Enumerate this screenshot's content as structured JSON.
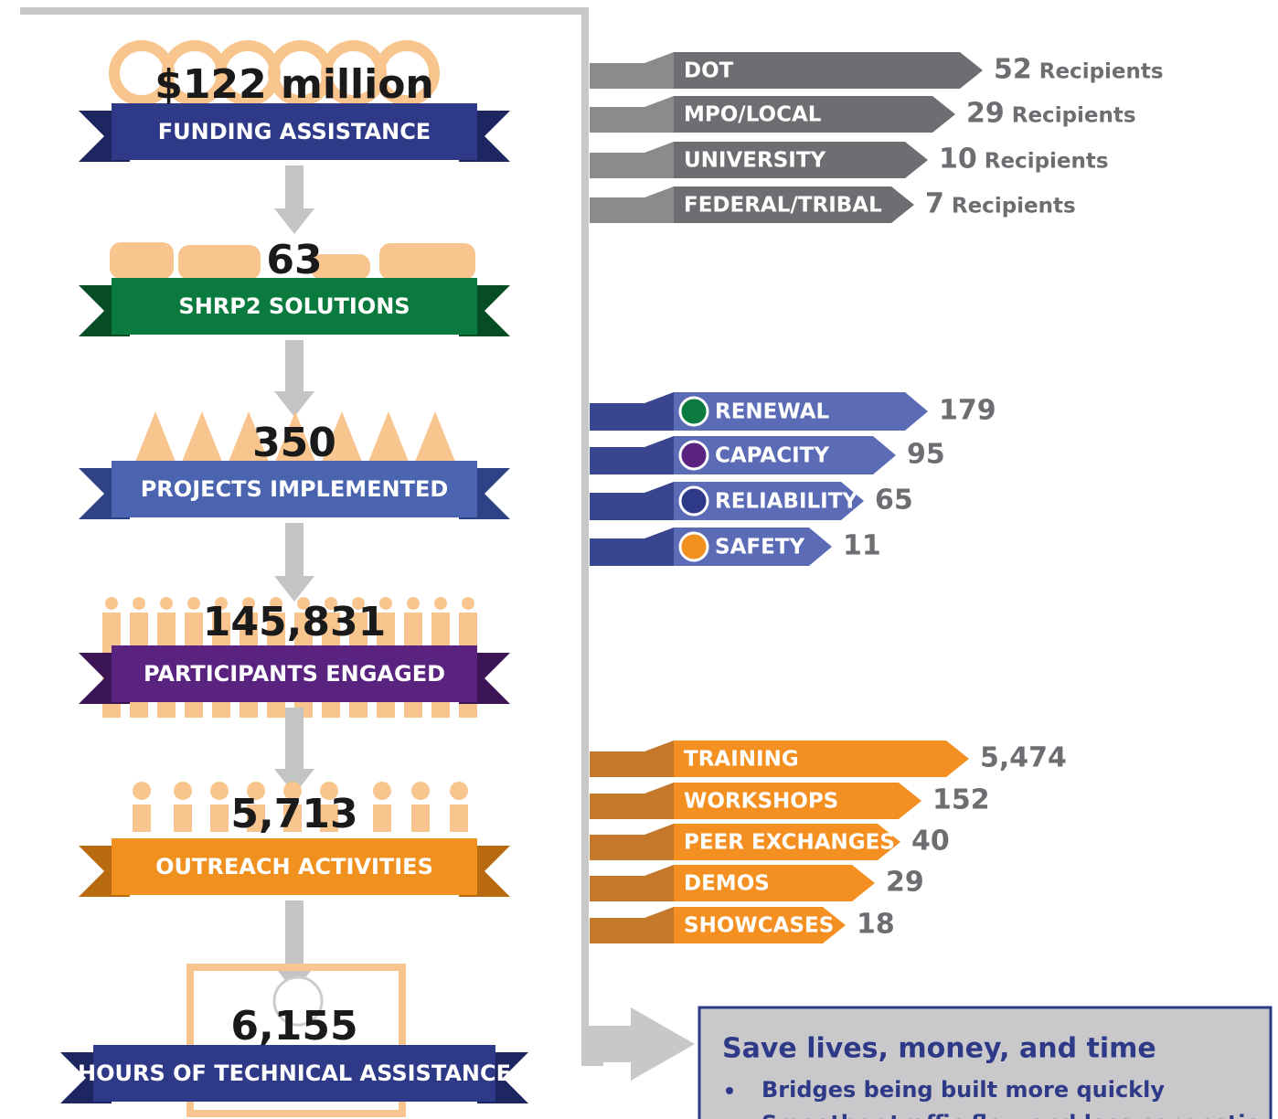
{
  "steps": [
    {
      "value": "$122 million",
      "label": "FUNDING ASSISTANCE"
    },
    {
      "value": "63",
      "label": "SHRP2 SOLUTIONS"
    },
    {
      "value": "350",
      "label": "PROJECTS IMPLEMENTED"
    },
    {
      "value": "145,831",
      "label": "PARTICIPANTS ENGAGED"
    },
    {
      "value": "5,713",
      "label": "OUTREACH ACTIVITIES"
    },
    {
      "value": "6,155",
      "label": "HOURS OF TECHNICAL ASSISTANCE"
    }
  ],
  "recipients": [
    {
      "label": "DOT",
      "value": "52",
      "unit": "Recipients"
    },
    {
      "label": "MPO/LOCAL",
      "value": "29",
      "unit": "Recipients"
    },
    {
      "label": "UNIVERSITY",
      "value": "10",
      "unit": "Recipients"
    },
    {
      "label": "FEDERAL/TRIBAL",
      "value": "7",
      "unit": "Recipients"
    }
  ],
  "focus_areas": [
    {
      "label": "RENEWAL",
      "value": "179"
    },
    {
      "label": "CAPACITY",
      "value": "95"
    },
    {
      "label": "RELIABILITY",
      "value": "65"
    },
    {
      "label": "SAFETY",
      "value": "11"
    }
  ],
  "outreach": [
    {
      "label": "TRAINING",
      "value": "5,474"
    },
    {
      "label": "WORKSHOPS",
      "value": "152"
    },
    {
      "label": "PEER EXCHANGES",
      "value": "40"
    },
    {
      "label": "DEMOS",
      "value": "29"
    },
    {
      "label": "SHOWCASES",
      "value": "18"
    }
  ],
  "callout": {
    "title": "Save lives, money, and time",
    "bullets": [
      "Bridges being built more quickly",
      "Smoother traffic flow and less congestion"
    ]
  }
}
